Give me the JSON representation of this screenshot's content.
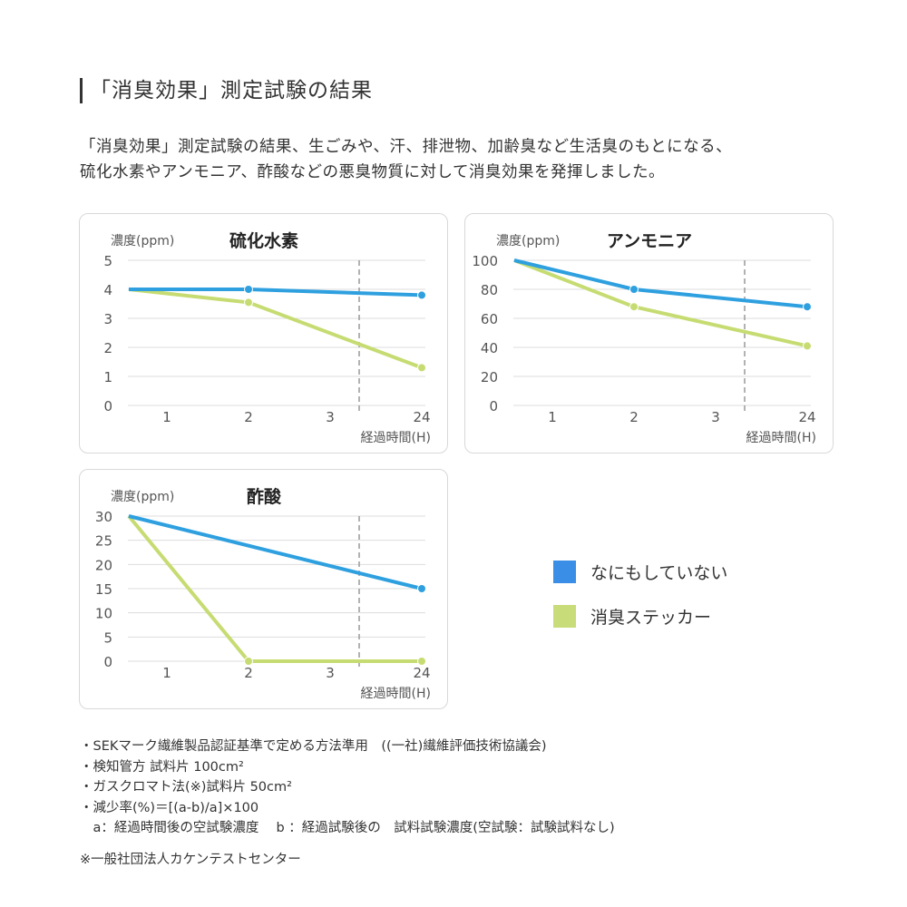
{
  "heading": "「消臭効果」測定試験の結果",
  "lead": [
    "「消臭効果」測定試験の結果、生ごみや、汗、排泄物、加齢臭など生活臭のもとになる、",
    "硫化水素やアンモニア、酢酸などの悪臭物質に対して消臭効果を発揮しました。"
  ],
  "colors": {
    "none": "#2fa0df",
    "sticker": "#c6dc72",
    "legend_none": "#3a8ee6",
    "legend_sticker": "#c8dc7a"
  },
  "legend": [
    {
      "label": "なにもしていない"
    },
    {
      "label": "消臭ステッカー"
    }
  ],
  "chart_data": [
    {
      "type": "line",
      "title": "硫化水素",
      "ylabel": "濃度(ppm)",
      "xlabel": "経過時間(H)",
      "x_ticks": [
        "1",
        "2",
        "3",
        "24"
      ],
      "ylim": [
        0,
        5
      ],
      "y_ticks": [
        "0",
        "1",
        "2",
        "3",
        "4",
        "5"
      ],
      "grid": true,
      "axis_break_between": [
        "3",
        "24"
      ],
      "x": [
        0,
        2,
        24
      ],
      "series": [
        {
          "name": "なにもしていない",
          "values": [
            4,
            4,
            3.8
          ]
        },
        {
          "name": "消臭ステッカー",
          "values": [
            4,
            3.55,
            1.3
          ]
        }
      ]
    },
    {
      "type": "line",
      "title": "アンモニア",
      "ylabel": "濃度(ppm)",
      "xlabel": "経過時間(H)",
      "x_ticks": [
        "1",
        "2",
        "3",
        "24"
      ],
      "ylim": [
        0,
        100
      ],
      "y_ticks": [
        "0",
        "20",
        "40",
        "60",
        "80",
        "100"
      ],
      "grid": true,
      "axis_break_between": [
        "3",
        "24"
      ],
      "x": [
        0,
        2,
        24
      ],
      "series": [
        {
          "name": "なにもしていない",
          "values": [
            100,
            80,
            68
          ]
        },
        {
          "name": "消臭ステッカー",
          "values": [
            100,
            68,
            41
          ]
        }
      ]
    },
    {
      "type": "line",
      "title": "酢酸",
      "ylabel": "濃度(ppm)",
      "xlabel": "経過時間(H)",
      "x_ticks": [
        "1",
        "2",
        "3",
        "24"
      ],
      "ylim": [
        0,
        30
      ],
      "y_ticks": [
        "0",
        "5",
        "10",
        "15",
        "20",
        "25",
        "30"
      ],
      "grid": true,
      "axis_break_between": [
        "3",
        "24"
      ],
      "x": [
        0,
        2,
        24
      ],
      "series": [
        {
          "name": "なにもしていない",
          "values": [
            30,
            null,
            15
          ]
        },
        {
          "name": "消臭ステッカー",
          "values": [
            30,
            0,
            0
          ]
        }
      ]
    }
  ],
  "notes": [
    "・SEKマーク繊維製品認証基準で定める方法準用　((一社)繊維評価技術協議会)",
    "・検知管方 試料片 100cm²",
    "・ガスクロマト法(※)試料片 50cm²",
    "・減少率(%)＝[(a-b)/a]×100",
    "　a：経過時間後の空試験濃度　 b ：経過試験後の　試料試験濃度(空試験：試験試料なし)"
  ],
  "source": "※一般社団法人カケンテストセンター"
}
